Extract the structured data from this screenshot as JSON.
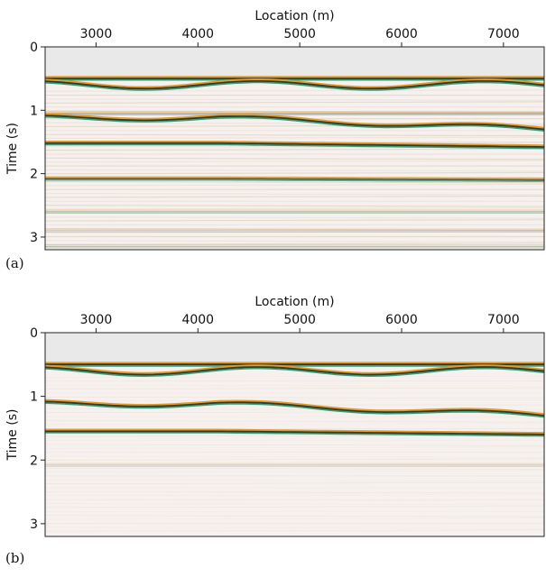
{
  "chart_data": [
    {
      "type": "image",
      "panel_label": "(a)",
      "x_label": "Location (m)",
      "y_label": "Time (s)",
      "xlim": [
        2500,
        7400
      ],
      "xticks": [
        3000,
        4000,
        5000,
        6000,
        7000
      ],
      "x_axis_position": "top",
      "ylim": [
        0,
        3.2
      ],
      "yticks": [
        0,
        1,
        2,
        3
      ],
      "y_inverted": true
    },
    {
      "type": "image",
      "panel_label": "(b)",
      "x_label": "Location (m)",
      "y_label": "Time (s)",
      "xlim": [
        2500,
        7400
      ],
      "xticks": [
        3000,
        4000,
        5000,
        6000,
        7000
      ],
      "x_axis_position": "top",
      "ylim": [
        0,
        3.2
      ],
      "yticks": [
        0,
        1,
        2,
        3
      ],
      "y_inverted": true
    }
  ]
}
